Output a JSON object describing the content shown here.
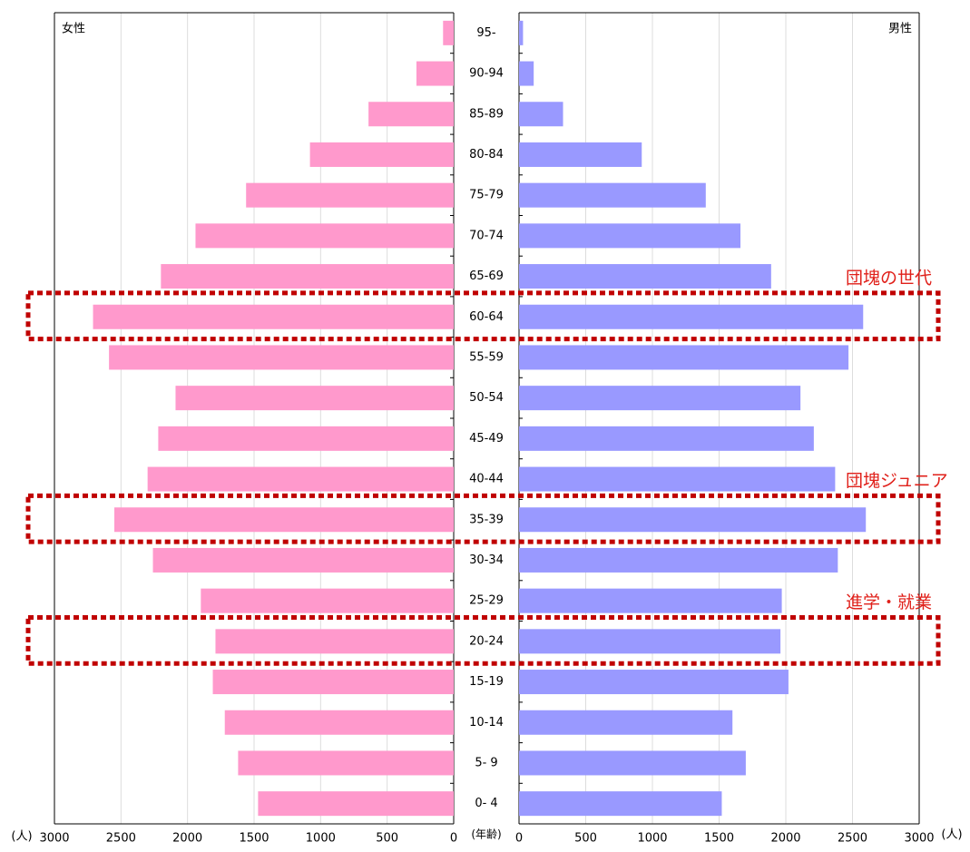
{
  "chart_data": {
    "type": "pyramid",
    "categories": [
      "95-",
      "90-94",
      "85-89",
      "80-84",
      "75-79",
      "70-74",
      "65-69",
      "60-64",
      "55-59",
      "50-54",
      "45-49",
      "40-44",
      "35-39",
      "30-34",
      "25-29",
      "20-24",
      "15-19",
      "10-14",
      "5- 9",
      "0- 4"
    ],
    "series": [
      {
        "name": "女性",
        "color": "#ff99cc",
        "values": [
          80,
          280,
          640,
          1080,
          1560,
          1940,
          2200,
          2710,
          2590,
          2090,
          2220,
          2300,
          2550,
          2260,
          1900,
          1790,
          1810,
          1720,
          1620,
          1470
        ]
      },
      {
        "name": "男性",
        "color": "#9999ff",
        "values": [
          30,
          110,
          330,
          920,
          1400,
          1660,
          1890,
          2580,
          2470,
          2110,
          2210,
          2370,
          2600,
          2390,
          1970,
          1960,
          2020,
          1600,
          1700,
          1520
        ]
      }
    ],
    "xlim": [
      0,
      3000
    ],
    "xticks": [
      0,
      500,
      1000,
      1500,
      2000,
      2500,
      3000
    ],
    "x_label": "(人)",
    "category_label": "(年齢)",
    "grid": true,
    "annotations": [
      "団塊の世代",
      "団塊ジュニア",
      "進学・就業"
    ]
  }
}
